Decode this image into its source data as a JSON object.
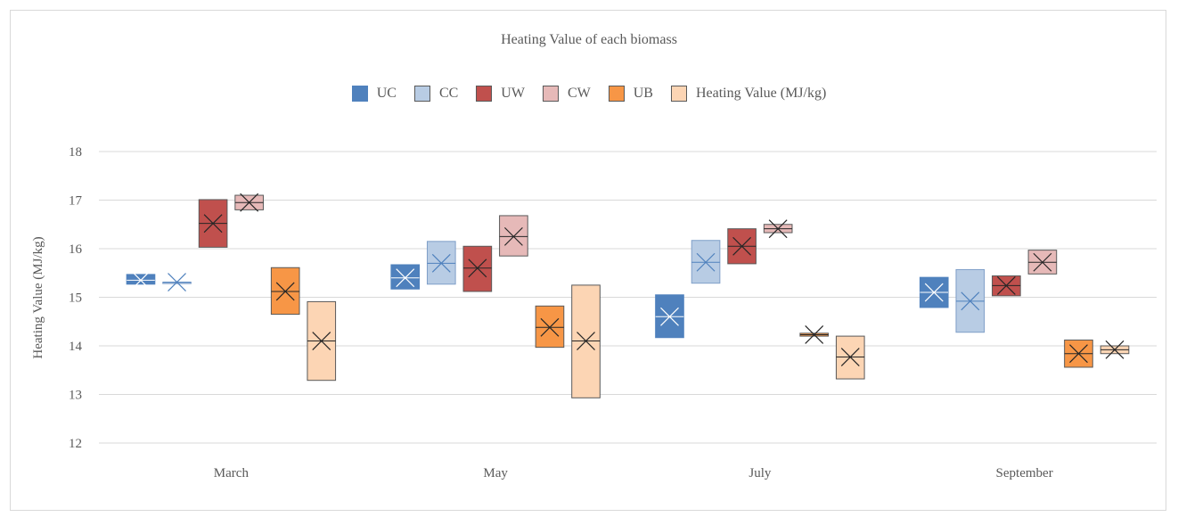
{
  "chart_data": {
    "type": "box",
    "title": "Heating Value of each biomass",
    "xlabel": "",
    "ylabel": "Heating Value (MJ/kg)",
    "ylim": [
      12,
      18
    ],
    "yticks": [
      "12",
      "13",
      "14",
      "15",
      "16",
      "17",
      "18"
    ],
    "categories": [
      "March",
      "May",
      "July",
      "September"
    ],
    "grid": true,
    "legend_position": "top-center",
    "series": [
      {
        "name": "UC",
        "color": "#4f81bd",
        "boxes": [
          {
            "q1": 15.27,
            "median": 15.35,
            "q3": 15.47,
            "mean": 15.35
          },
          {
            "q1": 15.17,
            "median": 15.4,
            "q3": 15.67,
            "mean": 15.4
          },
          {
            "q1": 14.17,
            "median": 14.6,
            "q3": 15.05,
            "mean": 14.6
          },
          {
            "q1": 14.79,
            "median": 15.1,
            "q3": 15.41,
            "mean": 15.1
          }
        ]
      },
      {
        "name": "CC",
        "color": "#b8cce4",
        "boxes": [
          {
            "q1": 15.31,
            "median": 15.31,
            "q3": 15.31,
            "mean": 15.31
          },
          {
            "q1": 15.27,
            "median": 15.7,
            "q3": 16.15,
            "mean": 15.7
          },
          {
            "q1": 15.29,
            "median": 15.72,
            "q3": 16.17,
            "mean": 15.72
          },
          {
            "q1": 14.28,
            "median": 14.92,
            "q3": 15.57,
            "mean": 14.92
          }
        ]
      },
      {
        "name": "UW",
        "color": "#c0504d",
        "boxes": [
          {
            "q1": 16.03,
            "median": 16.52,
            "q3": 17.01,
            "mean": 16.52
          },
          {
            "q1": 15.12,
            "median": 15.6,
            "q3": 16.05,
            "mean": 15.6
          },
          {
            "q1": 15.69,
            "median": 16.05,
            "q3": 16.41,
            "mean": 16.05
          },
          {
            "q1": 15.03,
            "median": 15.24,
            "q3": 15.44,
            "mean": 15.24
          }
        ]
      },
      {
        "name": "CW",
        "color": "#e6b9b8",
        "boxes": [
          {
            "q1": 16.8,
            "median": 16.95,
            "q3": 17.1,
            "mean": 16.95
          },
          {
            "q1": 15.85,
            "median": 16.25,
            "q3": 16.68,
            "mean": 16.25
          },
          {
            "q1": 16.33,
            "median": 16.41,
            "q3": 16.5,
            "mean": 16.41
          },
          {
            "q1": 15.48,
            "median": 15.72,
            "q3": 15.97,
            "mean": 15.72
          }
        ]
      },
      {
        "name": "UB",
        "color": "#f79646",
        "boxes": [
          {
            "q1": 14.65,
            "median": 15.12,
            "q3": 15.61,
            "mean": 15.12
          },
          {
            "q1": 13.97,
            "median": 14.38,
            "q3": 14.82,
            "mean": 14.38
          },
          {
            "q1": 14.2,
            "median": 14.23,
            "q3": 14.26,
            "mean": 14.23
          },
          {
            "q1": 13.56,
            "median": 13.84,
            "q3": 14.12,
            "mean": 13.84
          }
        ]
      },
      {
        "name": "Heating Value (MJ/kg)",
        "color": "#fcd5b4",
        "boxes": [
          {
            "q1": 13.29,
            "median": 14.1,
            "q3": 14.91,
            "mean": 14.1
          },
          {
            "q1": 12.93,
            "median": 14.1,
            "q3": 15.25,
            "mean": 14.1
          },
          {
            "q1": 13.32,
            "median": 13.77,
            "q3": 14.2,
            "mean": 13.77
          },
          {
            "q1": 13.84,
            "median": 13.92,
            "q3": 14.0,
            "mean": 13.92
          }
        ]
      }
    ]
  }
}
